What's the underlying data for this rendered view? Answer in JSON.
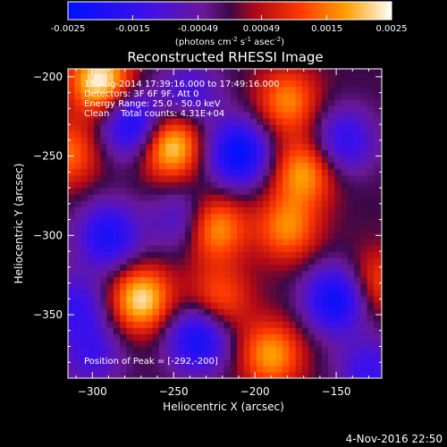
{
  "chart_data": {
    "type": "heatmap",
    "title": "Reconstructed RHESSI Image",
    "xlabel": "Heliocentric X (arcsec)",
    "ylabel": "Heliocentric Y (arcsec)",
    "xlim": [
      -315,
      -122
    ],
    "ylim": [
      -390,
      -195
    ],
    "xticks": [
      -300,
      -250,
      -200,
      -150
    ],
    "yticks": [
      -200,
      -250,
      -300,
      -350
    ],
    "colorbar": {
      "ticks": [
        "-0.0025",
        "-0.0015",
        "-0.00049",
        "0.00049",
        "0.0015",
        "0.0025"
      ],
      "tick_values": [
        -0.0025,
        -0.0015,
        -0.00049,
        0.00049,
        0.0015,
        0.0025
      ],
      "range": [
        -0.0025,
        0.0025
      ],
      "colormap": "blue-purple-red-yellow-white",
      "units_label": "(photons cm",
      "units_exp1": "-2",
      "units_mid": " s",
      "units_exp2": "-1",
      "units_mid2": " asec",
      "units_exp3": "-2",
      "units_end": ")"
    },
    "annotations": [
      "15-Aug-2014 17:39:16.000 to 17:49:16.000",
      "Detectors: 3F 6F 9F, Att 0",
      "Energy Range: 25.0 - 50.0 keV",
      "Clean    Total counts: 4.31E+04"
    ],
    "peak_label": "Position of Peak = [-292,-200]",
    "blobs": [
      {
        "x": -295,
        "y": -202,
        "value": 0.0025
      },
      {
        "x": -252,
        "y": -243,
        "value": 0.0024
      },
      {
        "x": -180,
        "y": -215,
        "value": 0.0016
      },
      {
        "x": -170,
        "y": -260,
        "value": 0.0018
      },
      {
        "x": -225,
        "y": -295,
        "value": 0.0019
      },
      {
        "x": -180,
        "y": -295,
        "value": 0.0016
      },
      {
        "x": -270,
        "y": -340,
        "value": 0.0023
      },
      {
        "x": -222,
        "y": -340,
        "value": 0.0013
      },
      {
        "x": -190,
        "y": -375,
        "value": 0.0018
      },
      {
        "x": -125,
        "y": -330,
        "value": 0.0012
      },
      {
        "x": -315,
        "y": -248,
        "value": 0.0014
      },
      {
        "x": -275,
        "y": -230,
        "value": -0.0022
      },
      {
        "x": -210,
        "y": -248,
        "value": -0.0025
      },
      {
        "x": -240,
        "y": -210,
        "value": -0.0012
      },
      {
        "x": -290,
        "y": -300,
        "value": -0.002
      },
      {
        "x": -245,
        "y": -290,
        "value": -0.0012
      },
      {
        "x": -150,
        "y": -340,
        "value": -0.0024
      },
      {
        "x": -145,
        "y": -240,
        "value": -0.0016
      },
      {
        "x": -235,
        "y": -365,
        "value": -0.0022
      },
      {
        "x": -300,
        "y": -375,
        "value": -0.0012
      },
      {
        "x": -310,
        "y": -345,
        "value": -0.0014
      },
      {
        "x": -130,
        "y": -385,
        "value": -0.0014
      }
    ]
  },
  "footer_timestamp": "4-Nov-2016 22:50"
}
